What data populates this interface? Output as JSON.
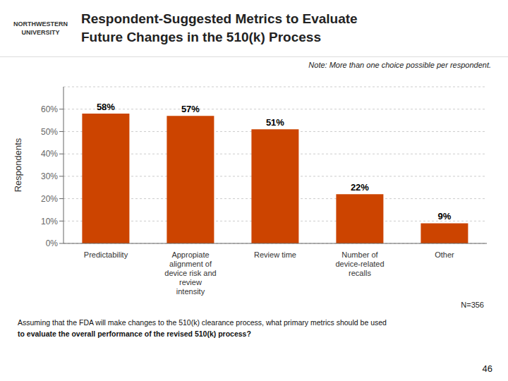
{
  "chart_data": {
    "type": "bar",
    "title": "Respondent-Suggested Metrics to Evaluate\nFuture Changes in the 510(k) Process",
    "categories": [
      "Predictability",
      "Appropiate\nalignment of\ndevice risk and\nreview\nintensity",
      "Review time",
      "Number of\ndevice-related\nrecalls",
      "Other"
    ],
    "values": [
      58,
      57,
      51,
      22,
      9
    ],
    "value_labels": [
      "58%",
      "57%",
      "51%",
      "22%",
      "9%"
    ],
    "data_labels": true,
    "color": "#CC4400",
    "ylabel": "Respondents",
    "ylim": [
      0,
      70
    ],
    "yticks": [
      {
        "value": 0,
        "label": "0%"
      },
      {
        "value": 10,
        "label": "10%"
      },
      {
        "value": 20,
        "label": "20%"
      },
      {
        "value": 30,
        "label": "30%"
      },
      {
        "value": 40,
        "label": "40%"
      },
      {
        "value": 50,
        "label": "50%"
      },
      {
        "value": 60,
        "label": "60%"
      }
    ],
    "grid": true,
    "annotations": [
      "Note: More than one choice possible per respondent.",
      "N=356",
      "Assuming that the FDA will make changes to the 510(k) clearance process, what primary metrics should be used",
      "to evaluate the overall performance of the revised 510(k) process?",
      "46",
      "NORTHWESTERN\nUNIVERSITY"
    ]
  }
}
